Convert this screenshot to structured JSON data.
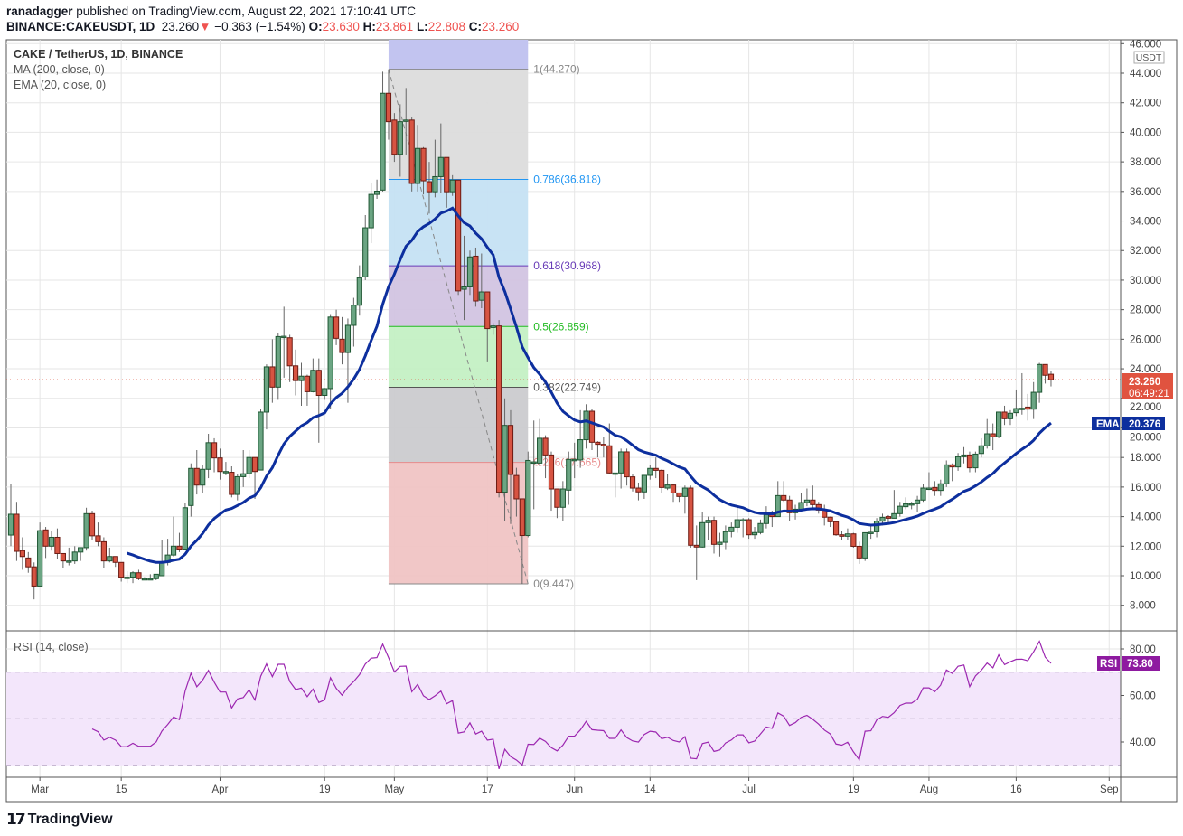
{
  "header": {
    "author": "ranadagger",
    "published_text": "published on TradingView.com, August 22, 2021 17:10:41 UTC",
    "symbol": "BINANCE:CAKEUSDT, 1D",
    "last": "23.260",
    "change": "−0.363 (−1.54%)",
    "o_label": "O:",
    "o": "23.630",
    "h_label": "H:",
    "h": "23.861",
    "l_label": "L:",
    "l": "22.808",
    "c_label": "C:",
    "c": "23.260"
  },
  "legend": {
    "title": "CAKE / TetherUS, 1D, BINANCE",
    "ma": "MA (200, close, 0)",
    "ema": "EMA (20, close, 0)",
    "rsi": "RSI (14, close)"
  },
  "badges": {
    "currency": "USDT",
    "price": "23.260",
    "countdown": "06:49:21",
    "ema_label": "EMA",
    "ema_value": "20.376",
    "rsi_label": "RSI",
    "rsi_value": "73.80"
  },
  "footer": {
    "brand": "TradingView"
  },
  "colors": {
    "up": "#6ba583",
    "down": "#d75442",
    "ema": "#0d2f9e",
    "rsi": "#9c27b0",
    "price_badge": "#e0533f",
    "rsi_badge": "#8e1aa0"
  },
  "chart_data": {
    "type": "candlestick",
    "symbol": "CAKE / TetherUS",
    "first_date": "2021-02-24",
    "last_date": "2021-08-22",
    "ylim": [
      7,
      46
    ],
    "y_ticks": [
      "46.000",
      "44.000",
      "42.000",
      "40.000",
      "38.000",
      "36.000",
      "34.000",
      "32.000",
      "30.000",
      "28.000",
      "26.000",
      "24.000",
      "22.000",
      "20.000",
      "18.000",
      "16.000",
      "14.000",
      "12.000",
      "10.000",
      "8.000"
    ],
    "x_ticks": [
      {
        "label": "Mar",
        "date": "2021-03-01"
      },
      {
        "label": "15",
        "date": "2021-03-15"
      },
      {
        "label": "Apr",
        "date": "2021-04-01"
      },
      {
        "label": "19",
        "date": "2021-04-19"
      },
      {
        "label": "May",
        "date": "2021-05-01"
      },
      {
        "label": "17",
        "date": "2021-05-17"
      },
      {
        "label": "Jun",
        "date": "2021-06-01"
      },
      {
        "label": "14",
        "date": "2021-06-14"
      },
      {
        "label": "Jul",
        "date": "2021-07-01"
      },
      {
        "label": "19",
        "date": "2021-07-19"
      },
      {
        "label": "Aug",
        "date": "2021-08-01"
      },
      {
        "label": "16",
        "date": "2021-08-16"
      },
      {
        "label": "Sep",
        "date": "2021-09-01"
      }
    ],
    "grid": true,
    "ohlc": [
      [
        12.75,
        16.2,
        12.0,
        14.16
      ],
      [
        14.16,
        15.0,
        11.0,
        11.65
      ],
      [
        11.7,
        12.6,
        10.4,
        11.3
      ],
      [
        11.2,
        11.6,
        10.2,
        10.6
      ],
      [
        10.6,
        10.9,
        8.4,
        9.3
      ],
      [
        9.3,
        13.6,
        9.3,
        13.05
      ],
      [
        13.1,
        13.3,
        11.2,
        12.0
      ],
      [
        12.0,
        13.0,
        11.7,
        12.6
      ],
      [
        12.6,
        13.2,
        11.1,
        11.5
      ],
      [
        11.5,
        11.5,
        10.5,
        11.0
      ],
      [
        11.0,
        11.9,
        10.7,
        11.0
      ],
      [
        11.0,
        12.0,
        10.8,
        11.6
      ],
      [
        11.6,
        11.9,
        11.0,
        11.9
      ],
      [
        11.9,
        14.6,
        11.7,
        14.2
      ],
      [
        14.2,
        14.4,
        12.4,
        12.7
      ],
      [
        12.7,
        13.6,
        12.0,
        12.3
      ],
      [
        12.3,
        12.6,
        10.5,
        11.0
      ],
      [
        11.0,
        11.9,
        10.9,
        11.3
      ],
      [
        11.3,
        11.3,
        10.6,
        10.9
      ],
      [
        10.9,
        10.9,
        9.6,
        9.9
      ],
      [
        9.9,
        10.3,
        9.5,
        9.9
      ],
      [
        9.9,
        10.3,
        9.5,
        10.2
      ],
      [
        10.2,
        10.4,
        9.7,
        9.8
      ],
      [
        9.8,
        9.9,
        9.7,
        9.8
      ],
      [
        9.8,
        10.1,
        9.7,
        9.8
      ],
      [
        9.8,
        10.1,
        9.7,
        10.1
      ],
      [
        10.0,
        12.4,
        10.0,
        10.9
      ],
      [
        10.9,
        12.5,
        10.7,
        11.4
      ],
      [
        11.4,
        14.0,
        11.3,
        12.0
      ],
      [
        12.0,
        12.9,
        11.6,
        11.8
      ],
      [
        11.8,
        14.9,
        11.8,
        14.6
      ],
      [
        14.75,
        17.6,
        14.0,
        17.26
      ],
      [
        17.26,
        18.5,
        15.5,
        16.13
      ],
      [
        16.13,
        17.5,
        15.6,
        17.2
      ],
      [
        17.2,
        19.6,
        16.6,
        19.0
      ],
      [
        19.0,
        19.3,
        17.0,
        17.97
      ],
      [
        17.97,
        18.6,
        16.5,
        17.05
      ],
      [
        17.05,
        17.7,
        16.8,
        17.05
      ],
      [
        17.0,
        17.4,
        15.3,
        15.5
      ],
      [
        15.5,
        16.9,
        15.1,
        16.7
      ],
      [
        16.7,
        18.5,
        16.0,
        16.9
      ],
      [
        16.9,
        18.5,
        16.6,
        18.0
      ],
      [
        18.0,
        18.0,
        15.2,
        17.05
      ],
      [
        17.15,
        21.3,
        17.2,
        21.07
      ],
      [
        21.07,
        24.3,
        19.9,
        24.13
      ],
      [
        24.13,
        26.0,
        21.7,
        22.76
      ],
      [
        22.76,
        26.4,
        21.9,
        26.18
      ],
      [
        26.2,
        28.2,
        23.4,
        26.2
      ],
      [
        26.1,
        26.3,
        23.1,
        24.2
      ],
      [
        24.2,
        25.3,
        22.2,
        23.2
      ],
      [
        23.2,
        24.4,
        21.5,
        23.5
      ],
      [
        23.5,
        23.6,
        21.5,
        22.45
      ],
      [
        22.45,
        24.7,
        22.4,
        23.9
      ],
      [
        23.9,
        24.7,
        19.0,
        22.2
      ],
      [
        22.2,
        22.7,
        21.9,
        22.66
      ],
      [
        22.66,
        27.7,
        21.3,
        27.5
      ],
      [
        27.5,
        28.0,
        25.6,
        26.06
      ],
      [
        26.0,
        27.5,
        24.3,
        25.1
      ],
      [
        25.1,
        27.4,
        21.7,
        26.94
      ],
      [
        26.94,
        28.8,
        25.5,
        28.3
      ],
      [
        28.3,
        31.0,
        27.6,
        30.16
      ],
      [
        30.22,
        34.4,
        30.0,
        33.54
      ],
      [
        33.54,
        36.6,
        32.5,
        35.8
      ],
      [
        35.8,
        36.8,
        35.5,
        36.02
      ],
      [
        36.09,
        44.1,
        36.0,
        42.64
      ],
      [
        42.64,
        44.2,
        39.5,
        40.72
      ],
      [
        40.83,
        41.3,
        38.0,
        38.51
      ],
      [
        38.51,
        41.9,
        37.0,
        40.72
      ],
      [
        40.83,
        43.0,
        38.5,
        40.83
      ],
      [
        40.83,
        41.0,
        36.0,
        36.54
      ],
      [
        36.54,
        40.5,
        36.0,
        38.91
      ],
      [
        38.91,
        39.0,
        35.8,
        36.72
      ],
      [
        36.66,
        38.0,
        34.5,
        35.98
      ],
      [
        35.98,
        39.5,
        35.6,
        37.0
      ],
      [
        37.0,
        40.6,
        35.9,
        38.3
      ],
      [
        38.3,
        38.3,
        34.9,
        35.98
      ],
      [
        35.98,
        37.1,
        35.7,
        36.77
      ],
      [
        36.77,
        36.8,
        29.0,
        29.27
      ],
      [
        29.38,
        33.0,
        27.3,
        29.54
      ],
      [
        29.54,
        32.0,
        29.0,
        31.57
      ],
      [
        31.62,
        32.2,
        28.2,
        28.59
      ],
      [
        28.64,
        31.8,
        28.1,
        29.2
      ],
      [
        29.2,
        29.2,
        24.5,
        26.72
      ],
      [
        26.79,
        27.1,
        26.3,
        26.9
      ],
      [
        26.9,
        27.3,
        15.3,
        15.65
      ],
      [
        15.65,
        22.0,
        13.7,
        20.17
      ],
      [
        20.17,
        21.2,
        13.5,
        16.85
      ],
      [
        16.78,
        17.3,
        14.0,
        15.2
      ],
      [
        15.2,
        15.2,
        9.45,
        12.72
      ],
      [
        12.72,
        18.4,
        12.6,
        17.8
      ],
      [
        17.7,
        20.5,
        14.5,
        17.7
      ],
      [
        17.62,
        20.6,
        17.4,
        19.3
      ],
      [
        19.3,
        19.5,
        16.6,
        18.17
      ],
      [
        18.17,
        18.4,
        14.4,
        15.87
      ],
      [
        15.87,
        15.9,
        13.9,
        14.63
      ],
      [
        14.63,
        16.4,
        13.7,
        15.87
      ],
      [
        15.79,
        18.4,
        14.8,
        17.87
      ],
      [
        17.87,
        19.0,
        16.6,
        17.87
      ],
      [
        17.83,
        21.2,
        17.3,
        19.2
      ],
      [
        19.2,
        21.6,
        18.6,
        21.13
      ],
      [
        21.13,
        21.3,
        18.5,
        19.03
      ],
      [
        19.03,
        19.1,
        18.0,
        18.89
      ],
      [
        18.89,
        19.4,
        18.0,
        18.79
      ],
      [
        18.79,
        20.3,
        16.9,
        16.95
      ],
      [
        16.95,
        16.95,
        15.3,
        16.95
      ],
      [
        16.95,
        18.6,
        15.9,
        18.38
      ],
      [
        18.38,
        18.6,
        16.1,
        16.69
      ],
      [
        16.69,
        16.9,
        15.7,
        15.93
      ],
      [
        15.93,
        16.3,
        15.1,
        15.67
      ],
      [
        15.67,
        16.8,
        15.2,
        16.79
      ],
      [
        16.79,
        17.5,
        16.5,
        17.26
      ],
      [
        17.26,
        18.0,
        16.6,
        17.13
      ],
      [
        17.13,
        17.2,
        15.6,
        15.97
      ],
      [
        15.93,
        16.9,
        15.8,
        16.14
      ],
      [
        16.14,
        16.2,
        15.0,
        15.6
      ],
      [
        15.6,
        15.6,
        15.0,
        15.36
      ],
      [
        15.36,
        16.1,
        14.2,
        15.93
      ],
      [
        15.93,
        16.1,
        11.9,
        12.06
      ],
      [
        12.06,
        13.4,
        9.7,
        11.94
      ],
      [
        11.94,
        14.3,
        11.9,
        13.59
      ],
      [
        13.59,
        14.0,
        12.4,
        13.75
      ],
      [
        13.75,
        14.0,
        11.5,
        12.12
      ],
      [
        12.12,
        12.9,
        11.3,
        12.26
      ],
      [
        12.26,
        13.4,
        11.8,
        12.98
      ],
      [
        12.98,
        13.6,
        12.6,
        13.28
      ],
      [
        13.28,
        14.6,
        12.9,
        13.79
      ],
      [
        13.79,
        13.9,
        12.6,
        13.79
      ],
      [
        13.79,
        13.9,
        12.5,
        12.77
      ],
      [
        12.77,
        13.3,
        12.5,
        12.92
      ],
      [
        12.92,
        13.8,
        12.8,
        13.53
      ],
      [
        13.53,
        14.7,
        13.2,
        14.14
      ],
      [
        14.14,
        14.4,
        13.3,
        14.0
      ],
      [
        14.0,
        16.4,
        14.0,
        15.42
      ],
      [
        15.42,
        16.4,
        15.0,
        15.12
      ],
      [
        15.12,
        15.4,
        13.7,
        14.26
      ],
      [
        14.26,
        14.8,
        13.8,
        14.5
      ],
      [
        14.5,
        15.6,
        14.3,
        14.95
      ],
      [
        14.95,
        15.9,
        14.7,
        15.12
      ],
      [
        15.12,
        16.1,
        14.6,
        14.81
      ],
      [
        14.81,
        15.0,
        14.2,
        14.44
      ],
      [
        14.44,
        14.8,
        13.4,
        13.96
      ],
      [
        13.96,
        14.0,
        13.3,
        13.65
      ],
      [
        13.65,
        13.65,
        12.7,
        12.77
      ],
      [
        12.77,
        13.0,
        12.4,
        12.67
      ],
      [
        12.67,
        13.2,
        12.4,
        12.83
      ],
      [
        12.83,
        12.9,
        11.9,
        11.99
      ],
      [
        11.99,
        12.3,
        10.8,
        11.2
      ],
      [
        11.2,
        12.9,
        11.0,
        12.91
      ],
      [
        12.93,
        13.4,
        12.5,
        12.94
      ],
      [
        12.97,
        13.9,
        12.6,
        13.69
      ],
      [
        13.69,
        14.2,
        13.4,
        13.95
      ],
      [
        14.0,
        14.1,
        13.6,
        13.89
      ],
      [
        13.89,
        15.8,
        13.9,
        14.2
      ],
      [
        14.2,
        15.0,
        14.0,
        14.7
      ],
      [
        14.67,
        15.3,
        14.5,
        14.87
      ],
      [
        14.87,
        15.0,
        14.5,
        14.87
      ],
      [
        14.87,
        15.4,
        14.3,
        15.12
      ],
      [
        15.12,
        16.2,
        15.0,
        15.93
      ],
      [
        15.93,
        17.0,
        15.8,
        15.93
      ],
      [
        15.97,
        16.4,
        15.4,
        15.77
      ],
      [
        15.77,
        16.5,
        15.4,
        16.22
      ],
      [
        16.22,
        17.8,
        16.0,
        17.5
      ],
      [
        17.5,
        17.6,
        16.4,
        17.36
      ],
      [
        17.36,
        18.3,
        17.1,
        18.05
      ],
      [
        18.05,
        18.7,
        17.6,
        18.17
      ],
      [
        18.17,
        18.4,
        17.0,
        17.3
      ],
      [
        17.3,
        18.4,
        17.0,
        18.23
      ],
      [
        18.27,
        19.3,
        18.0,
        18.79
      ],
      [
        18.79,
        20.6,
        18.6,
        19.6
      ],
      [
        19.6,
        20.3,
        18.5,
        19.4
      ],
      [
        19.4,
        21.1,
        19.3,
        21.07
      ],
      [
        21.07,
        21.5,
        20.2,
        20.62
      ],
      [
        20.62,
        21.2,
        20.2,
        20.99
      ],
      [
        21.03,
        22.6,
        20.8,
        21.31
      ],
      [
        21.33,
        23.7,
        20.9,
        21.33
      ],
      [
        21.41,
        22.3,
        20.5,
        21.27
      ],
      [
        21.27,
        23.1,
        20.6,
        22.41
      ],
      [
        22.41,
        24.4,
        21.7,
        24.29
      ],
      [
        24.29,
        24.3,
        23.0,
        23.56
      ],
      [
        23.63,
        23.861,
        22.808,
        23.26
      ]
    ],
    "last_price": 23.26,
    "ema_last": 20.376,
    "fibonacci": {
      "start_date": "2021-04-30",
      "end_date": "2021-05-24",
      "high": 44.27,
      "low": 9.447,
      "levels": [
        {
          "ratio": 1,
          "price": 44.27,
          "label": "1(44.270)",
          "color": "#888888",
          "fill": "#dcdcdc"
        },
        {
          "ratio": 0.786,
          "price": 36.818,
          "label": "0.786(36.818)",
          "color": "#2196f3",
          "fill": "#c5e2f3"
        },
        {
          "ratio": 0.618,
          "price": 30.968,
          "label": "0.618(30.968)",
          "color": "#673ab7",
          "fill": "#d2c4e2"
        },
        {
          "ratio": 0.5,
          "price": 26.859,
          "label": "0.5(26.859)",
          "color": "#22bb22",
          "fill": "#c4f0c4"
        },
        {
          "ratio": 0.382,
          "price": 22.749,
          "label": "0.382(22.749)",
          "color": "#555555",
          "fill": "#cbcbcf"
        },
        {
          "ratio": 0.236,
          "price": 17.665,
          "label": "0.236(17.665)",
          "color": "#e88a8a",
          "fill": "#f0c4c4"
        },
        {
          "ratio": 0,
          "price": 9.447,
          "label": "0(9.447)",
          "color": "#888888",
          "fill": null
        }
      ],
      "extension_fill": "#c2c4f0"
    },
    "rsi": {
      "period": 14,
      "ylim": [
        25,
        88
      ],
      "y_ticks": [
        "80.00",
        "60.00",
        "40.00"
      ],
      "band": [
        30,
        70
      ],
      "last": 73.8
    }
  }
}
